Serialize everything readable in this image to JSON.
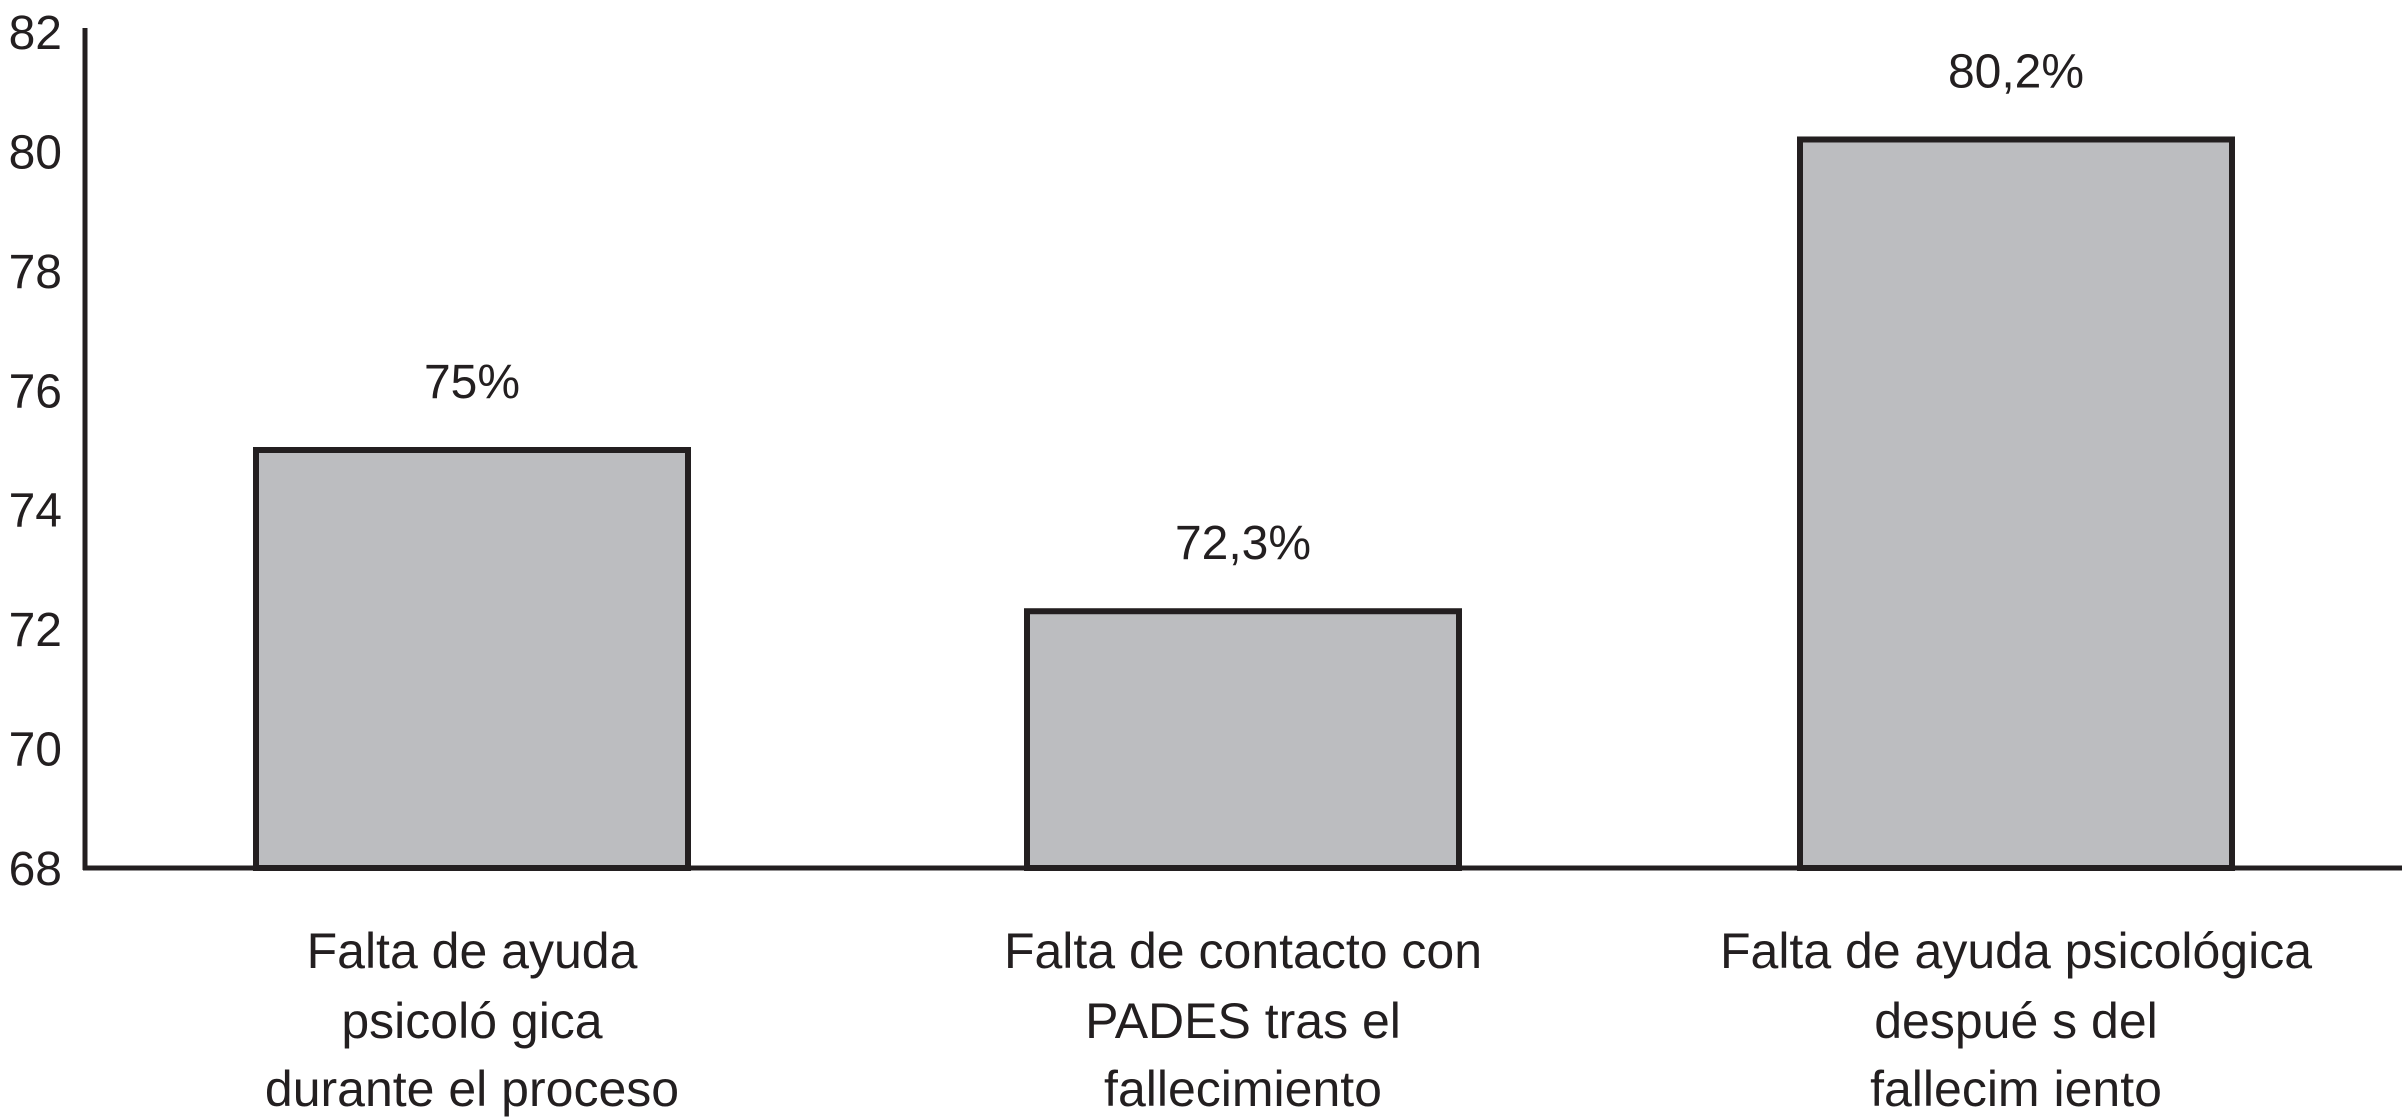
{
  "chart_data": {
    "type": "bar",
    "categories": [
      [
        "Falta de ayuda",
        "psicoló gica",
        "durante el proceso"
      ],
      [
        "Falta de contacto con",
        "PADES tras el",
        "fallecimiento"
      ],
      [
        "Falta de ayuda psicológica",
        "despué s del",
        "fallecim iento"
      ]
    ],
    "values": [
      75,
      72.3,
      80.2
    ],
    "value_labels": [
      "75%",
      "72,3%",
      "80,2%"
    ],
    "y_ticks": [
      68,
      70,
      72,
      74,
      76,
      78,
      80,
      82
    ],
    "ylim": [
      68,
      82
    ],
    "title": "",
    "xlabel": "",
    "ylabel": "",
    "grid": false,
    "legend": "none",
    "colors": {
      "bar_fill": "#bcbdc0",
      "bar_stroke": "#231f20",
      "axis": "#231f20",
      "text": "#231f20"
    }
  }
}
